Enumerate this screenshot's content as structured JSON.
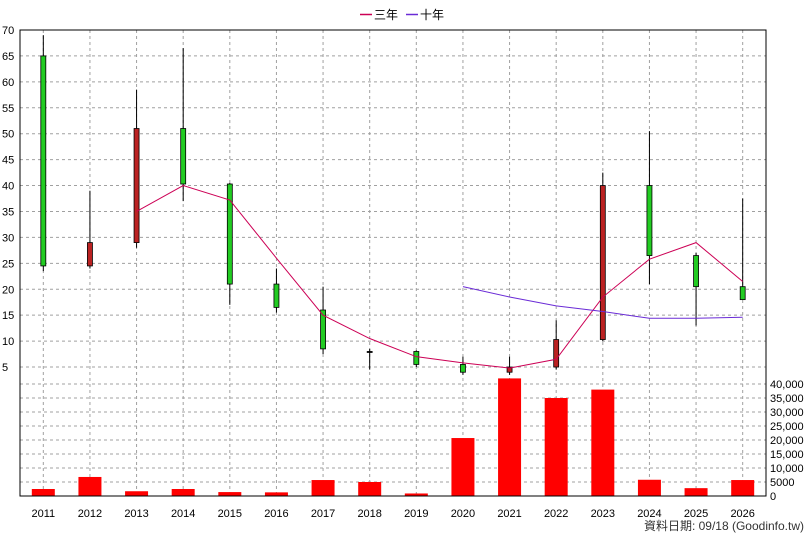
{
  "chart_data": {
    "type": "candlestick",
    "legend": {
      "position": "top-center",
      "items": [
        {
          "label": "三年",
          "color": "#cc0055"
        },
        {
          "label": "十年",
          "color": "#6a2bd6"
        }
      ]
    },
    "x_categories": [
      "2011",
      "2012",
      "2013",
      "2014",
      "2015",
      "2016",
      "2017",
      "2018",
      "2019",
      "2020",
      "2021",
      "2022",
      "2023",
      "2024",
      "2025",
      "2026"
    ],
    "price_axis": {
      "side": "left",
      "ylim": [
        2.5,
        70
      ],
      "ticks": [
        "70",
        "65",
        "60",
        "55",
        "50",
        "45",
        "40",
        "35",
        "30",
        "25",
        "20",
        "15",
        "10",
        "5"
      ]
    },
    "volume_axis": {
      "side": "right",
      "ylim": [
        0,
        40000
      ],
      "ticks": [
        "40,000",
        "35,000",
        "30,000",
        "25,000",
        "20,000",
        "15,000",
        "10,000",
        "5000",
        "0"
      ]
    },
    "candles": [
      {
        "x": "2011",
        "open": 24.5,
        "close": 65,
        "high": 69,
        "low": 23.5,
        "color": "#22cc22"
      },
      {
        "x": "2012",
        "open": 29,
        "close": 24.5,
        "high": 39,
        "low": 24,
        "color": "#bb2222"
      },
      {
        "x": "2013",
        "open": 51,
        "close": 29,
        "high": 58.5,
        "low": 28,
        "color": "#bb2222"
      },
      {
        "x": "2014",
        "open": 40.3,
        "close": 51,
        "high": 66.5,
        "low": 37,
        "color": "#22cc22"
      },
      {
        "x": "2015",
        "open": 21,
        "close": 40.3,
        "high": 40.5,
        "low": 17,
        "color": "#22cc22"
      },
      {
        "x": "2016",
        "open": 16.5,
        "close": 21,
        "high": 24,
        "low": 15.5,
        "color": "#22cc22"
      },
      {
        "x": "2017",
        "open": 8.5,
        "close": 16,
        "high": 20.5,
        "low": 7.5,
        "color": "#22cc22"
      },
      {
        "x": "2018",
        "open": 8,
        "close": 8,
        "high": 8.5,
        "low": 4.5,
        "color": "#000000"
      },
      {
        "x": "2019",
        "open": 5.5,
        "close": 8,
        "high": 8.2,
        "low": 5,
        "color": "#22cc22"
      },
      {
        "x": "2020",
        "open": 4,
        "close": 5.5,
        "high": 7,
        "low": 3.5,
        "color": "#22cc22"
      },
      {
        "x": "2021",
        "open": 5,
        "close": 4,
        "high": 7,
        "low": 3.5,
        "color": "#bb2222"
      },
      {
        "x": "2022",
        "open": 10.3,
        "close": 5,
        "high": 14,
        "low": 4.5,
        "color": "#bb2222"
      },
      {
        "x": "2023",
        "open": 40,
        "close": 10.3,
        "high": 42.5,
        "low": 10,
        "color": "#bb2222"
      },
      {
        "x": "2024",
        "open": 26.5,
        "close": 40,
        "high": 50.5,
        "low": 21,
        "color": "#22cc22"
      },
      {
        "x": "2025",
        "open": 20.5,
        "close": 26.5,
        "high": 27,
        "low": 13,
        "color": "#22cc22"
      },
      {
        "x": "2026",
        "open": 18,
        "close": 20.5,
        "high": 37.5,
        "low": 18,
        "color": "#22cc22"
      }
    ],
    "series": [
      {
        "name": "三年",
        "color": "#cc0055",
        "x": [
          "2013",
          "2014",
          "2015",
          "2016",
          "2017",
          "2018",
          "2019",
          "2020",
          "2021",
          "2022",
          "2023",
          "2024",
          "2025",
          "2026"
        ],
        "values": [
          35,
          40,
          37.2,
          26,
          15,
          10.5,
          7,
          5.8,
          4.8,
          6.5,
          18.5,
          25.8,
          29,
          21.5
        ]
      },
      {
        "name": "十年",
        "color": "#6a2bd6",
        "x": [
          "2020",
          "2021",
          "2022",
          "2023",
          "2024",
          "2025",
          "2026"
        ],
        "values": [
          20.5,
          18.5,
          16.8,
          15.7,
          14.4,
          14.4,
          14.6
        ]
      }
    ],
    "volume": {
      "color": "#ff0000",
      "values": [
        2500,
        6800,
        1700,
        2500,
        1400,
        1300,
        5700,
        5000,
        900,
        20700,
        42000,
        35000,
        38000,
        5800,
        2800,
        5700
      ]
    }
  },
  "footer": {
    "source_text": "資料日期: 09/18 (Goodinfo.tw)"
  }
}
